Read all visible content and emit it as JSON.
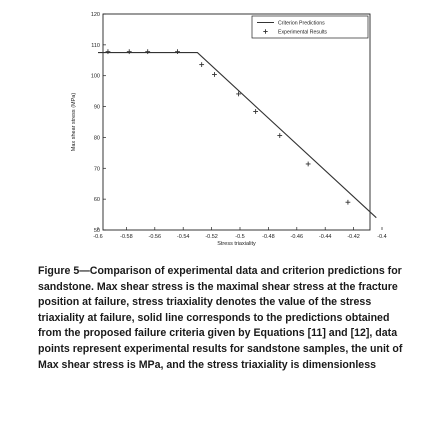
{
  "chart_data": {
    "type": "line",
    "xlabel": "Stress triaxiality",
    "ylabel": "Max shear stress (MPa)",
    "xlim": [
      -0.6,
      -0.4
    ],
    "ylim": [
      50,
      120
    ],
    "x_ticks": [
      -0.6,
      -0.58,
      -0.56,
      -0.54,
      -0.52,
      -0.5,
      -0.48,
      -0.46,
      -0.44,
      -0.42,
      -0.4
    ],
    "x_tick_labels": [
      "-0.6",
      "-0.58",
      "-0.56",
      "-0.54",
      "-0.52",
      "-0.5",
      "-0.48",
      "-0.46",
      "-0.44",
      "-0.42",
      "-0.4"
    ],
    "y_ticks": [
      50,
      60,
      70,
      80,
      90,
      100,
      110,
      120
    ],
    "y_tick_labels": [
      "50",
      "60",
      "70",
      "80",
      "90",
      "100",
      "110",
      "120"
    ],
    "legend_position": "top-right",
    "grid": false,
    "series": [
      {
        "name": "Criterion Predictions",
        "style": "line",
        "color": "#333333",
        "x": [
          -0.6,
          -0.53,
          -0.404
        ],
        "y": [
          107.5,
          107.5,
          54
        ]
      },
      {
        "name": "Experimental Results",
        "style": "markers",
        "marker": "plus",
        "color": "#333333",
        "x": [
          -0.593,
          -0.578,
          -0.565,
          -0.544,
          -0.527,
          -0.518,
          -0.501,
          -0.489,
          -0.472,
          -0.452,
          -0.424
        ],
        "y": [
          107.8,
          107.8,
          107.8,
          107.8,
          103.6,
          100.4,
          94.1,
          88.4,
          80.6,
          71.4,
          59.0
        ]
      }
    ]
  },
  "caption": "Figure 5—Comparison of experimental data and criterion predictions for sandstone. Max shear stress is the maximal shear stress at the fracture position at failure, stress triaxiality denotes the value of the stress triaxiality at failure, solid line corresponds to the predictions obtained from the proposed failure criteria given by Equations [11] and [12], data points represent experimental results for sandstone samples, the unit of Max shear stress is MPa, and the stress triaxiality is dimensionless"
}
